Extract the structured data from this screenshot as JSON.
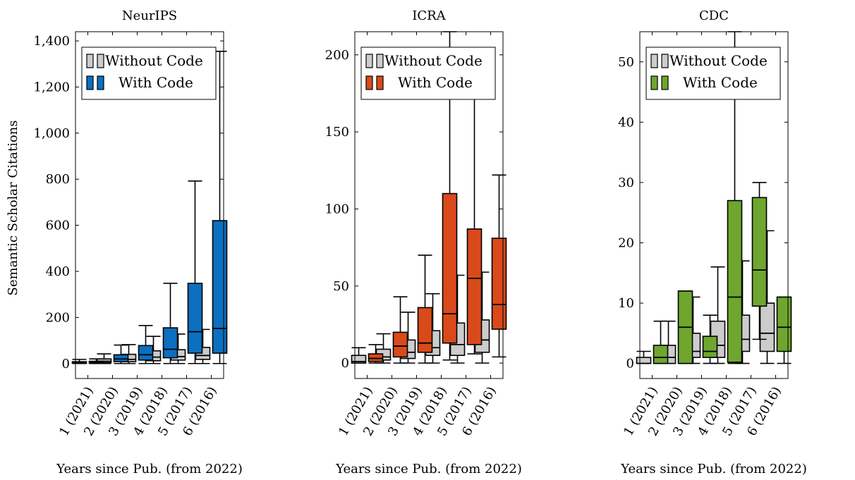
{
  "colors": {
    "without": "#cccccc",
    "neurips": "#0c6fc0",
    "icra": "#d94a1a",
    "cdc": "#6ea62e",
    "stroke": "#000000"
  },
  "figure": {
    "ylabel": "Semantic Scholar Citations"
  },
  "chart_data": [
    {
      "type": "box",
      "title": "NeurIPS",
      "xlabel": "Years since Pub. (from 2022)",
      "ylabel": "Semantic Scholar Citations",
      "categories": [
        "1 (2021)",
        "2 (2020)",
        "3 (2019)",
        "4 (2018)",
        "5 (2017)",
        "6 (2016)"
      ],
      "ylim": [
        -65,
        1440
      ],
      "yticks": [
        0,
        200,
        400,
        600,
        800,
        1000,
        1200,
        1400
      ],
      "ytick_labels": [
        "0",
        "200",
        "400",
        "600",
        "800",
        "1,000",
        "1,200",
        "1,400"
      ],
      "legend": {
        "position": "top-left",
        "entries": [
          "Without Code",
          "With Code"
        ]
      },
      "series": [
        {
          "name": "Without Code",
          "boxes": [
            {
              "min": 0,
              "q1": 1,
              "median": 4,
              "q3": 8,
              "max": 18
            },
            {
              "min": 0,
              "q1": 4,
              "median": 10,
              "q3": 20,
              "max": 42
            },
            {
              "min": 0,
              "q1": 8,
              "median": 18,
              "q3": 40,
              "max": 82
            },
            {
              "min": 0,
              "q1": 12,
              "median": 28,
              "q3": 55,
              "max": 118
            },
            {
              "min": 0,
              "q1": 15,
              "median": 30,
              "q3": 60,
              "max": 128
            },
            {
              "min": 0,
              "q1": 18,
              "median": 35,
              "q3": 70,
              "max": 148
            }
          ]
        },
        {
          "name": "With Code",
          "boxes": [
            {
              "min": 0,
              "q1": 2,
              "median": 5,
              "q3": 10,
              "max": 20
            },
            {
              "min": 0,
              "q1": 8,
              "median": 20,
              "q3": 38,
              "max": 80
            },
            {
              "min": 0,
              "q1": 15,
              "median": 38,
              "q3": 78,
              "max": 165
            },
            {
              "min": 0,
              "q1": 25,
              "median": 62,
              "q3": 155,
              "max": 348
            },
            {
              "min": 0,
              "q1": 45,
              "median": 138,
              "q3": 348,
              "max": 792
            },
            {
              "min": 0,
              "q1": 45,
              "median": 152,
              "q3": 620,
              "max": 1355
            }
          ]
        }
      ]
    },
    {
      "type": "box",
      "title": "ICRA",
      "xlabel": "Years since Pub. (from 2022)",
      "ylabel": "",
      "categories": [
        "1 (2021)",
        "2 (2020)",
        "3 (2019)",
        "4 (2018)",
        "5 (2017)",
        "6 (2016)"
      ],
      "ylim": [
        -10,
        215
      ],
      "yticks": [
        0,
        50,
        100,
        150,
        200
      ],
      "ytick_labels": [
        "0",
        "50",
        "100",
        "150",
        "200"
      ],
      "legend": {
        "position": "top-left",
        "entries": [
          "Without Code",
          "With Code"
        ]
      },
      "series": [
        {
          "name": "Without Code",
          "boxes": [
            {
              "min": 0,
              "q1": 0,
              "median": 1,
              "q3": 5,
              "max": 10
            },
            {
              "min": 0,
              "q1": 2,
              "median": 4,
              "q3": 9,
              "max": 19
            },
            {
              "min": 0,
              "q1": 3,
              "median": 7,
              "q3": 15,
              "max": 33
            },
            {
              "min": 0,
              "q1": 5,
              "median": 10,
              "q3": 21,
              "max": 45
            },
            {
              "min": 0,
              "q1": 5,
              "median": 12,
              "q3": 26,
              "max": 57
            },
            {
              "min": 0,
              "q1": 7,
              "median": 15,
              "q3": 28,
              "max": 59
            }
          ]
        },
        {
          "name": "With Code",
          "boxes": [
            {
              "min": 0,
              "q1": 1,
              "median": 3,
              "q3": 6,
              "max": 12
            },
            {
              "min": 0,
              "q1": 4,
              "median": 11,
              "q3": 20,
              "max": 43
            },
            {
              "min": 0,
              "q1": 7,
              "median": 13,
              "q3": 36,
              "max": 70
            },
            {
              "min": 2,
              "q1": 13,
              "median": 32,
              "q3": 110,
              "max": 215
            },
            {
              "min": 6,
              "q1": 12,
              "median": 55,
              "q3": 87,
              "max": 186
            },
            {
              "min": 4,
              "q1": 22,
              "median": 38,
              "q3": 81,
              "max": 122
            }
          ]
        }
      ]
    },
    {
      "type": "box",
      "title": "CDC",
      "xlabel": "Years since Pub. (from 2022)",
      "ylabel": "",
      "categories": [
        "1 (2021)",
        "2 (2020)",
        "3 (2019)",
        "4 (2018)",
        "5 (2017)",
        "6 (2016)"
      ],
      "ylim": [
        -2.5,
        55
      ],
      "yticks": [
        0,
        10,
        20,
        30,
        40,
        50
      ],
      "ytick_labels": [
        "0",
        "10",
        "20",
        "30",
        "40",
        "50"
      ],
      "legend": {
        "position": "top-left",
        "entries": [
          "Without Code",
          "With Code"
        ]
      },
      "series": [
        {
          "name": "Without Code",
          "boxes": [
            {
              "min": 0,
              "q1": 0,
              "median": 0,
              "q3": 1,
              "max": 2
            },
            {
              "min": 0,
              "q1": 0,
              "median": 1,
              "q3": 3,
              "max": 7
            },
            {
              "min": 0,
              "q1": 1,
              "median": 2,
              "q3": 5,
              "max": 11
            },
            {
              "min": 0,
              "q1": 1,
              "median": 3,
              "q3": 7,
              "max": 16
            },
            {
              "min": 0,
              "q1": 2,
              "median": 4,
              "q3": 8,
              "max": 17
            },
            {
              "min": 0,
              "q1": 2,
              "median": 5,
              "q3": 10,
              "max": 22
            }
          ]
        },
        {
          "name": "With Code",
          "boxes": [
            {
              "min": 0,
              "q1": 0,
              "median": 1,
              "q3": 3,
              "max": 7
            },
            {
              "min": 0,
              "q1": 0,
              "median": 6,
              "q3": 12,
              "max": 12
            },
            {
              "min": 0,
              "q1": 1,
              "median": 2,
              "q3": 4.5,
              "max": 8
            },
            {
              "min": 0,
              "q1": 0.2,
              "median": 11,
              "q3": 27,
              "max": 55
            },
            {
              "min": 4,
              "q1": 9.5,
              "median": 15.5,
              "q3": 27.5,
              "max": 30
            },
            {
              "min": 0,
              "q1": 2,
              "median": 6,
              "q3": 11,
              "max": 11
            }
          ]
        }
      ]
    }
  ]
}
